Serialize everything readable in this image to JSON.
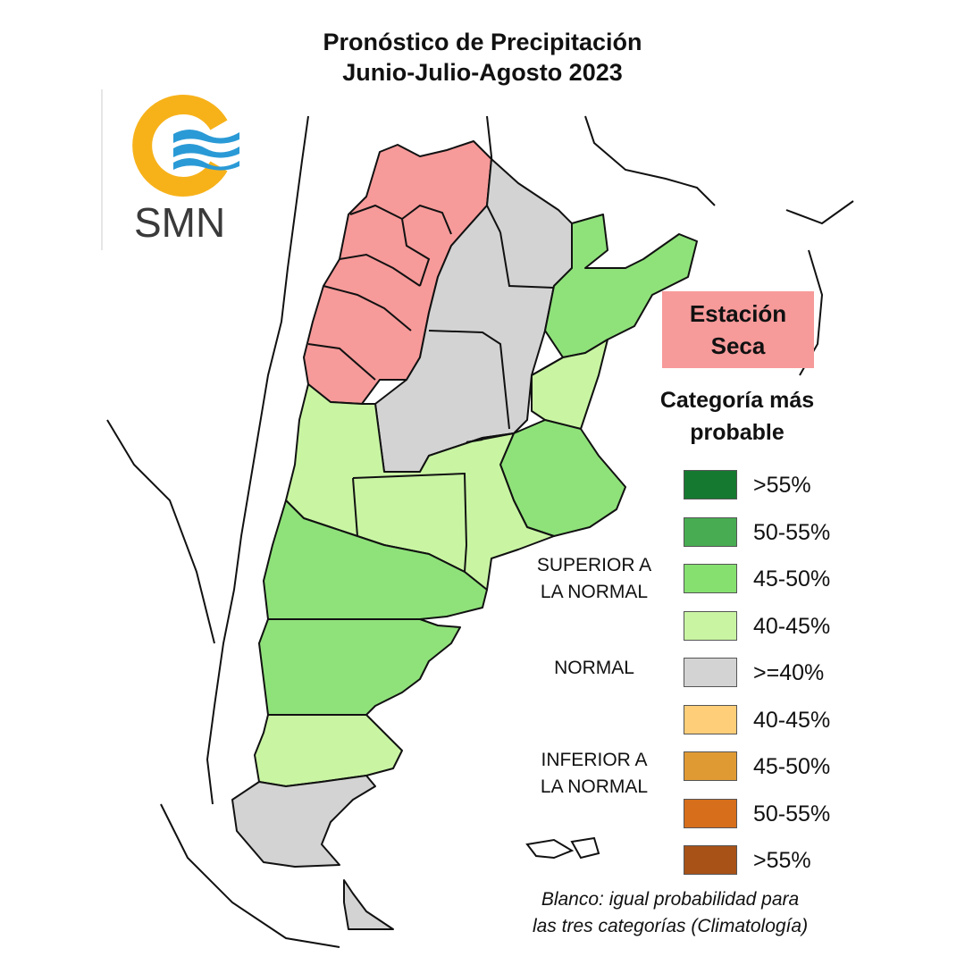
{
  "title": {
    "line1": "Pronóstico de Precipitación",
    "line2": "Junio-Julio-Agosto 2023"
  },
  "logo": {
    "text": "SMN",
    "colors": {
      "ring": "#f7b21a",
      "waves": "#2a9ad6",
      "text": "#3a3a3a"
    }
  },
  "dry_season_badge": {
    "line1": "Estación",
    "line2": "Seca",
    "color": "#f79a9a"
  },
  "legend": {
    "title_line1": "Categoría más",
    "title_line2": "probable",
    "groups": {
      "above": {
        "line1": "SUPERIOR A",
        "line2": "LA NORMAL"
      },
      "normal": {
        "line1": "NORMAL"
      },
      "below": {
        "line1": "INFERIOR A",
        "line2": "LA NORMAL"
      }
    },
    "items": [
      {
        "label": ">55%",
        "color": "#157a30"
      },
      {
        "label": "50-55%",
        "color": "#48ad52"
      },
      {
        "label": "45-50%",
        "color": "#86e070"
      },
      {
        "label": "40-45%",
        "color": "#c9f5a3"
      },
      {
        "label": ">=40%",
        "color": "#d3d3d3"
      },
      {
        "label": "40-45%",
        "color": "#ffce78"
      },
      {
        "label": "45-50%",
        "color": "#e09a34"
      },
      {
        "label": "50-55%",
        "color": "#d66e1c"
      },
      {
        "label": ">55%",
        "color": "#a85218"
      }
    ]
  },
  "footnote": {
    "line1": "Blanco: igual probabilidad para",
    "line2": "las tres categorías (Climatología)"
  },
  "map_colors": {
    "dry": "#f79a9a",
    "normal": "#d3d3d3",
    "light_green": "#c9f5a3",
    "mid_green": "#8fe27a",
    "border": "#111111"
  }
}
